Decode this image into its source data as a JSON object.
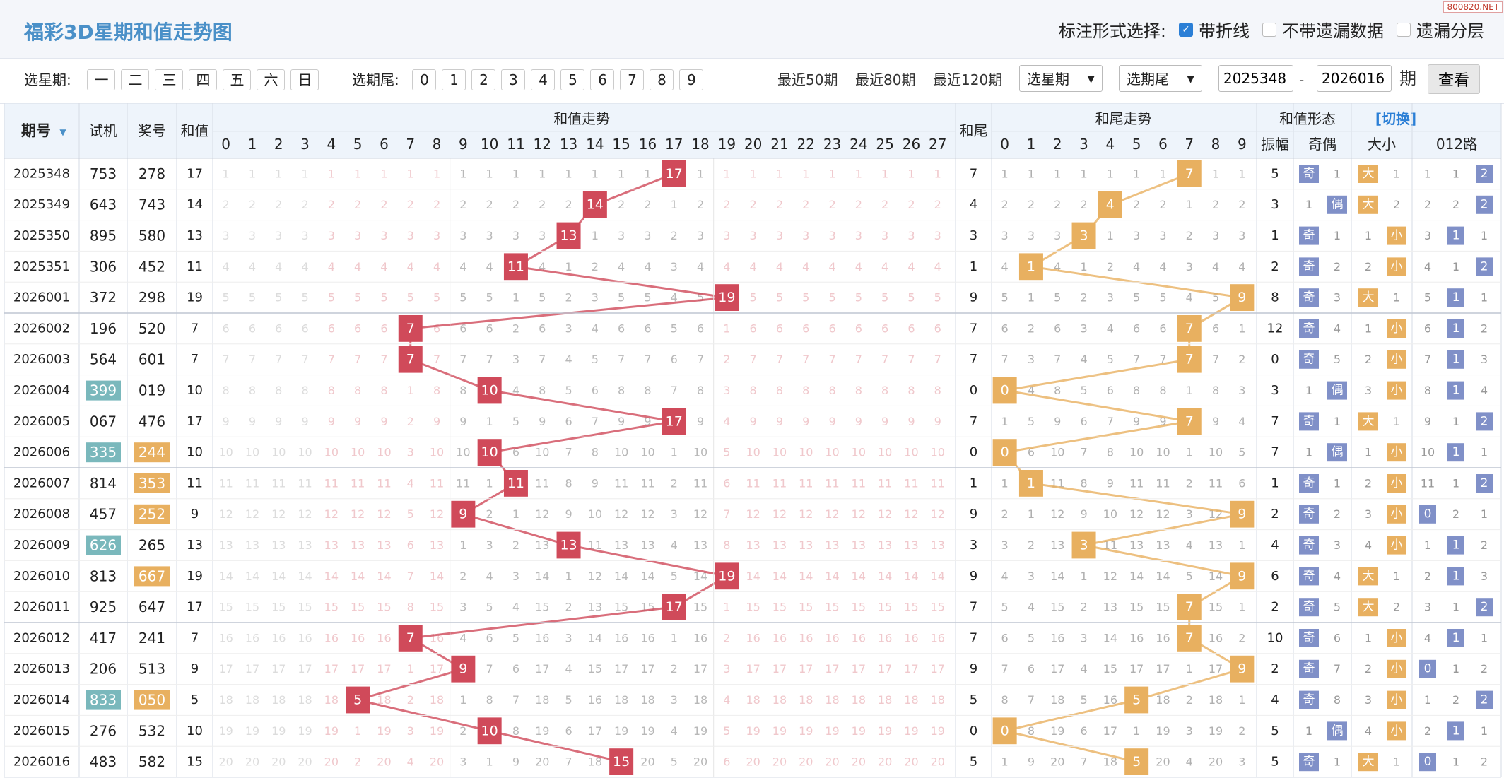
{
  "page": {
    "title": "福彩3D星期和值走势图",
    "watermark": "800820.NET",
    "mark_label": "标注形式选择:",
    "mark_options": [
      {
        "label": "带折线",
        "checked": true
      },
      {
        "label": "不带遗漏数据",
        "checked": false
      },
      {
        "label": "遗漏分层",
        "checked": false
      }
    ]
  },
  "filters": {
    "week_label": "选星期:",
    "week_days": [
      "一",
      "二",
      "三",
      "四",
      "五",
      "六",
      "日"
    ],
    "tail_label": "选期尾:",
    "tails": [
      "0",
      "1",
      "2",
      "3",
      "4",
      "5",
      "6",
      "7",
      "8",
      "9"
    ],
    "recent": [
      "最近50期",
      "最近80期",
      "最近120期"
    ],
    "week_select": "选星期",
    "tail_select": "选期尾",
    "start": "2025348",
    "dash": "-",
    "end": "2026016",
    "period_suffix": "期",
    "view": "查看"
  },
  "headers": {
    "issue": "期号",
    "test": "试机",
    "draw": "奖号",
    "sum": "和值",
    "sum_trend": "和值走势",
    "tail": "和尾",
    "tail_trend": "和尾走势",
    "form": "和值形态",
    "switch": "[切换]",
    "amp": "振幅",
    "odd_even": "奇偶",
    "big_small": "大小",
    "route": "012路"
  },
  "chart_data": {
    "type": "table",
    "sum_values": [
      "0",
      "1",
      "2",
      "3",
      "4",
      "5",
      "6",
      "7",
      "8",
      "9",
      "10",
      "11",
      "12",
      "13",
      "14",
      "15",
      "16",
      "17",
      "18",
      "19",
      "20",
      "21",
      "22",
      "23",
      "24",
      "25",
      "26",
      "27"
    ],
    "tail_values": [
      "0",
      "1",
      "2",
      "3",
      "4",
      "5",
      "6",
      "7",
      "8",
      "9"
    ],
    "rows": [
      {
        "issue": "2025348",
        "test": "753",
        "draw": "278",
        "sum": 17,
        "tail": 7,
        "amp": "5",
        "oe": "奇",
        "bs": "大",
        "route": 2,
        "test_hl": false,
        "draw_hl": false
      },
      {
        "issue": "2025349",
        "test": "643",
        "draw": "743",
        "sum": 14,
        "tail": 4,
        "amp": "3",
        "oe": "偶",
        "bs": "大",
        "route": 2,
        "test_hl": false,
        "draw_hl": false
      },
      {
        "issue": "2025350",
        "test": "895",
        "draw": "580",
        "sum": 13,
        "tail": 3,
        "amp": "1",
        "oe": "奇",
        "bs": "小",
        "route": 1,
        "test_hl": false,
        "draw_hl": false
      },
      {
        "issue": "2025351",
        "test": "306",
        "draw": "452",
        "sum": 11,
        "tail": 1,
        "amp": "2",
        "oe": "奇",
        "bs": "小",
        "route": 2,
        "test_hl": false,
        "draw_hl": false
      },
      {
        "issue": "2026001",
        "test": "372",
        "draw": "298",
        "sum": 19,
        "tail": 9,
        "amp": "8",
        "oe": "奇",
        "bs": "大",
        "route": 1,
        "test_hl": false,
        "draw_hl": false
      },
      {
        "issue": "2026002",
        "test": "196",
        "draw": "520",
        "sum": 7,
        "tail": 7,
        "amp": "12",
        "oe": "奇",
        "bs": "小",
        "route": 1,
        "test_hl": false,
        "draw_hl": false
      },
      {
        "issue": "2026003",
        "test": "564",
        "draw": "601",
        "sum": 7,
        "tail": 7,
        "amp": "0",
        "oe": "奇",
        "bs": "小",
        "route": 1,
        "test_hl": false,
        "draw_hl": false
      },
      {
        "issue": "2026004",
        "test": "399",
        "draw": "019",
        "sum": 10,
        "tail": 0,
        "amp": "3",
        "oe": "偶",
        "bs": "小",
        "route": 1,
        "test_hl": true,
        "draw_hl": false
      },
      {
        "issue": "2026005",
        "test": "067",
        "draw": "476",
        "sum": 17,
        "tail": 7,
        "amp": "7",
        "oe": "奇",
        "bs": "大",
        "route": 2,
        "test_hl": false,
        "draw_hl": false
      },
      {
        "issue": "2026006",
        "test": "335",
        "draw": "244",
        "sum": 10,
        "tail": 0,
        "amp": "7",
        "oe": "偶",
        "bs": "小",
        "route": 1,
        "test_hl": true,
        "draw_hl": true
      },
      {
        "issue": "2026007",
        "test": "814",
        "draw": "353",
        "sum": 11,
        "tail": 1,
        "amp": "1",
        "oe": "奇",
        "bs": "小",
        "route": 2,
        "test_hl": false,
        "draw_hl": true
      },
      {
        "issue": "2026008",
        "test": "457",
        "draw": "252",
        "sum": 9,
        "tail": 9,
        "amp": "2",
        "oe": "奇",
        "bs": "小",
        "route": 0,
        "test_hl": false,
        "draw_hl": true
      },
      {
        "issue": "2026009",
        "test": "626",
        "draw": "265",
        "sum": 13,
        "tail": 3,
        "amp": "4",
        "oe": "奇",
        "bs": "小",
        "route": 1,
        "test_hl": true,
        "draw_hl": false
      },
      {
        "issue": "2026010",
        "test": "813",
        "draw": "667",
        "sum": 19,
        "tail": 9,
        "amp": "6",
        "oe": "奇",
        "bs": "大",
        "route": 1,
        "test_hl": false,
        "draw_hl": true
      },
      {
        "issue": "2026011",
        "test": "925",
        "draw": "647",
        "sum": 17,
        "tail": 7,
        "amp": "2",
        "oe": "奇",
        "bs": "大",
        "route": 2,
        "test_hl": false,
        "draw_hl": false
      },
      {
        "issue": "2026012",
        "test": "417",
        "draw": "241",
        "sum": 7,
        "tail": 7,
        "amp": "10",
        "oe": "奇",
        "bs": "小",
        "route": 1,
        "test_hl": false,
        "draw_hl": false
      },
      {
        "issue": "2026013",
        "test": "206",
        "draw": "513",
        "sum": 9,
        "tail": 9,
        "amp": "2",
        "oe": "奇",
        "bs": "小",
        "route": 0,
        "test_hl": false,
        "draw_hl": false
      },
      {
        "issue": "2026014",
        "test": "833",
        "draw": "050",
        "sum": 5,
        "tail": 5,
        "amp": "4",
        "oe": "奇",
        "bs": "小",
        "route": 2,
        "test_hl": true,
        "draw_hl": true
      },
      {
        "issue": "2026015",
        "test": "276",
        "draw": "532",
        "sum": 10,
        "tail": 0,
        "amp": "5",
        "oe": "偶",
        "bs": "小",
        "route": 1,
        "test_hl": false,
        "draw_hl": false
      },
      {
        "issue": "2026016",
        "test": "483",
        "draw": "582",
        "sum": 15,
        "tail": 5,
        "amp": "5",
        "oe": "奇",
        "bs": "大",
        "route": 0,
        "test_hl": false,
        "draw_hl": false
      }
    ]
  },
  "colors": {
    "sum_mark": "#d04a5a",
    "tail_mark": "#e8b060",
    "form_mark": "#8090c8",
    "big_small_mark": "#e8b060",
    "test_highlight": "#7ab8bc",
    "draw_highlight": "#e8b060",
    "header_bg": "#eef4fb",
    "title_color": "#4a90c8"
  }
}
